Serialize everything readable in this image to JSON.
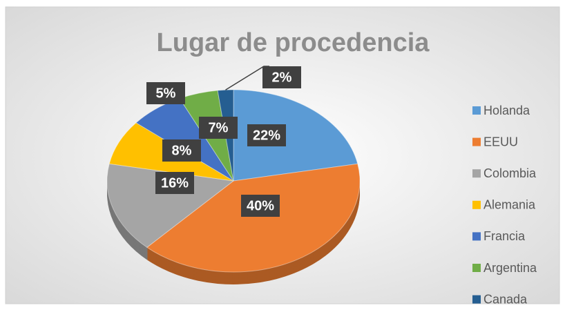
{
  "chart_data": {
    "type": "pie",
    "title": "Lugar de procedencia",
    "categories": [
      "Holanda",
      "EEUU",
      "Colombia",
      "Alemania",
      "Francia",
      "Argentina",
      "Canada"
    ],
    "values": [
      22,
      40,
      16,
      8,
      7,
      5,
      2
    ],
    "value_labels": [
      "22%",
      "40%",
      "16%",
      "8%",
      "7%",
      "5%",
      "2%"
    ],
    "colors": [
      "#5b9bd5",
      "#ed7d31",
      "#a5a5a5",
      "#ffc000",
      "#4472c4",
      "#70ad47",
      "#255e91"
    ],
    "legend": "right"
  }
}
